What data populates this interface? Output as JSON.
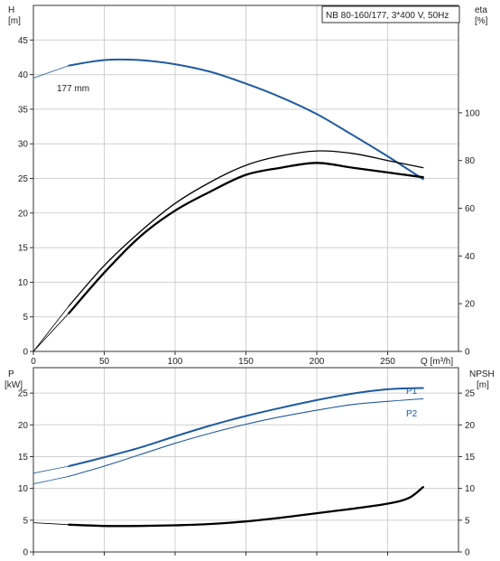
{
  "header": {
    "pump_label": "NB 80-160/177, 3*400 V, 50Hz"
  },
  "colors": {
    "blue": "#1f5aa0",
    "black": "#000000",
    "grid": "#d0d0d0",
    "axis": "#333333"
  },
  "chart_data": [
    {
      "type": "line",
      "title": "",
      "xlabel": "Q [m³/h]",
      "ylabel_left": {
        "name": "H",
        "unit": "[m]"
      },
      "ylabel_right": {
        "name": "eta",
        "unit": "[%]"
      },
      "xlim": [
        0,
        300
      ],
      "ylim_left": [
        0,
        50
      ],
      "ylim_right": [
        0,
        145
      ],
      "xticks": [
        "0",
        "50",
        "100",
        "150",
        "200",
        "250"
      ],
      "yticks_left": [
        "0",
        "5",
        "10",
        "15",
        "20",
        "25",
        "30",
        "35",
        "40",
        "45"
      ],
      "yticks_right": [
        "0",
        "20",
        "40",
        "60",
        "80",
        "100"
      ],
      "grid": true,
      "annotations": [
        {
          "text": "177 mm"
        }
      ],
      "series": [
        {
          "axis": "left",
          "color": "#1f5aa0",
          "width": 2,
          "x": [
            0,
            25,
            50,
            75,
            100,
            125,
            150,
            175,
            200,
            225,
            250,
            275
          ],
          "values": [
            39.5,
            41.3,
            42.1,
            42.1,
            41.5,
            40.4,
            38.7,
            36.7,
            34.3,
            31.3,
            28.2,
            24.9
          ],
          "solid_from": 25
        },
        {
          "axis": "right",
          "color": "#000000",
          "width": 1.3,
          "x": [
            0,
            25,
            50,
            75,
            100,
            125,
            150,
            175,
            200,
            225,
            250,
            275
          ],
          "values": [
            0,
            19,
            36,
            50,
            62,
            71,
            78,
            82,
            84,
            83,
            80,
            77
          ],
          "solid_from": 25
        },
        {
          "axis": "right",
          "color": "#000000",
          "width": 2.3,
          "x": [
            0,
            25,
            50,
            75,
            100,
            125,
            150,
            175,
            200,
            225,
            250,
            275
          ],
          "values": [
            0,
            16,
            33,
            48,
            59,
            67,
            74,
            77,
            79,
            77,
            75,
            73
          ],
          "solid_from": 25
        }
      ]
    },
    {
      "type": "line",
      "title": "",
      "xlabel": "",
      "ylabel_left": {
        "name": "P",
        "unit": "[kW]"
      },
      "ylabel_right": {
        "name": "NPSH",
        "unit": "[m]"
      },
      "xlim": [
        0,
        300
      ],
      "ylim_left": [
        0,
        29
      ],
      "ylim_right": [
        0,
        29
      ],
      "yticks_left": [
        "0",
        "5",
        "10",
        "15",
        "20",
        "25"
      ],
      "yticks_right": [
        "0",
        "5",
        "10",
        "15",
        "20",
        "25"
      ],
      "grid": true,
      "series": [
        {
          "name": "P1",
          "axis": "left",
          "color": "#1f5aa0",
          "width": 2,
          "x": [
            0,
            25,
            50,
            75,
            100,
            125,
            150,
            175,
            200,
            225,
            250,
            275
          ],
          "values": [
            12.4,
            13.5,
            14.9,
            16.4,
            18.2,
            19.9,
            21.4,
            22.7,
            23.9,
            24.9,
            25.6,
            25.8
          ],
          "solid_from": 25
        },
        {
          "name": "P2",
          "axis": "left",
          "color": "#1f5aa0",
          "width": 1.1,
          "x": [
            0,
            25,
            50,
            75,
            100,
            125,
            150,
            175,
            200,
            225,
            250,
            275
          ],
          "values": [
            10.7,
            11.9,
            13.5,
            15.3,
            17.1,
            18.7,
            20.1,
            21.3,
            22.3,
            23.2,
            23.7,
            24.1
          ],
          "solid_from": 25
        },
        {
          "axis": "right",
          "color": "#000000",
          "width": 2.3,
          "x": [
            0,
            25,
            50,
            75,
            100,
            125,
            150,
            175,
            200,
            225,
            250,
            265,
            275
          ],
          "values": [
            4.6,
            4.3,
            4.1,
            4.1,
            4.2,
            4.4,
            4.8,
            5.4,
            6.1,
            6.8,
            7.6,
            8.5,
            10.2
          ],
          "solid_from": 25
        }
      ]
    }
  ]
}
